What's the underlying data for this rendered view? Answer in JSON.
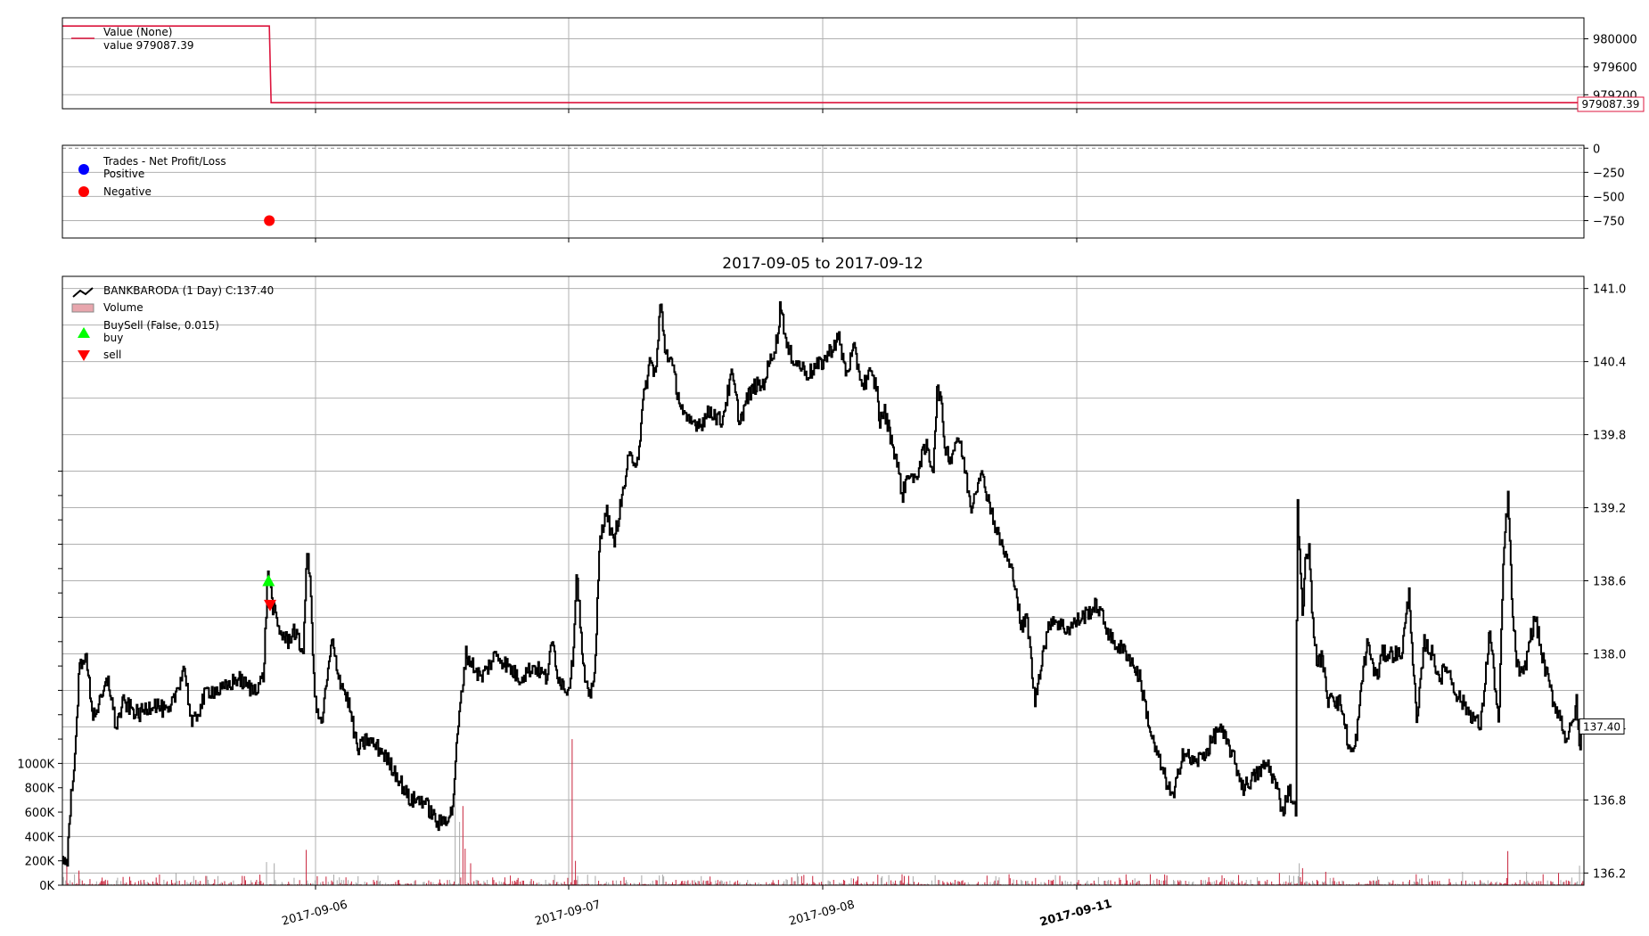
{
  "figure": {
    "main_title": "2017-09-05 to 2017-09-12"
  },
  "x_axis": {
    "ticks": [
      "2017-09-06",
      "2017-09-07",
      "2017-09-08",
      "2017-09-11"
    ]
  },
  "chart_data": [
    {
      "type": "line",
      "panel": "value",
      "legend_location": "top-left",
      "legend": [
        "Value (None)",
        "value 979087.39"
      ],
      "series": [
        {
          "name": "Value (None)",
          "color": "#dc143c",
          "start_value": 980183,
          "end_value": 979087.39,
          "drop_at_fraction": 0.136
        }
      ],
      "current_value_label": "979087.39",
      "y_ticks": [
        980000,
        979600,
        979200
      ],
      "y_tick_labels": [
        "980000",
        "979600",
        "979200"
      ],
      "ylim": [
        979000,
        980300
      ],
      "grid": true
    },
    {
      "type": "scatter",
      "panel": "trades",
      "legend_location": "top-left",
      "legend_title": "Trades - Net Profit/Loss",
      "legend": [
        {
          "name": "Positive",
          "color": "#0000ff"
        },
        {
          "name": "Negative",
          "color": "#ff0000"
        }
      ],
      "points": [
        {
          "x_fraction": 0.136,
          "y": -750,
          "category": "Negative"
        }
      ],
      "y_ticks": [
        0,
        -250,
        -500,
        -750
      ],
      "y_tick_labels": [
        "0",
        "−250",
        "−500",
        "−750"
      ],
      "ylim": [
        -930,
        30
      ],
      "grid": true
    },
    {
      "type": "line",
      "panel": "price",
      "title": "2017-09-05 to 2017-09-12",
      "legend_location": "top-left",
      "legend": [
        {
          "name": "BANKBARODA (1 Day) C:137.40",
          "color": "#000000"
        },
        {
          "name": "Volume",
          "color": "#e8a6ad"
        },
        {
          "name": "BuySell (False, 0.015)",
          "color": null
        },
        {
          "name": "buy",
          "color": "#00ff00"
        },
        {
          "name": "sell",
          "color": "#ff0000"
        }
      ],
      "price_y_ticks": [
        141.0,
        140.4,
        139.8,
        139.2,
        138.6,
        138.0,
        137.4,
        136.8,
        136.2
      ],
      "price_y_tick_labels": [
        "141.0",
        "140.4",
        "139.8",
        "139.2",
        "138.6",
        "138.0",
        "137.4",
        "136.8",
        "136.2"
      ],
      "price_ylim": [
        136.1,
        141.1
      ],
      "volume_y_ticks": [
        0,
        200000,
        400000,
        600000,
        800000,
        1000000
      ],
      "volume_y_tick_labels": [
        "0K",
        "200K",
        "400K",
        "600K",
        "800K",
        "1000K"
      ],
      "volume_ylim": [
        0,
        5000000
      ],
      "current_price_label": "137.40",
      "price_keypoints": [
        [
          0.0,
          136.3
        ],
        [
          0.003,
          136.3
        ],
        [
          0.006,
          136.9
        ],
        [
          0.009,
          137.3
        ],
        [
          0.011,
          137.9
        ],
        [
          0.015,
          138.0
        ],
        [
          0.02,
          137.5
        ],
        [
          0.025,
          137.6
        ],
        [
          0.03,
          137.8
        ],
        [
          0.035,
          137.4
        ],
        [
          0.04,
          137.6
        ],
        [
          0.05,
          137.5
        ],
        [
          0.06,
          137.6
        ],
        [
          0.07,
          137.5
        ],
        [
          0.08,
          137.9
        ],
        [
          0.085,
          137.4
        ],
        [
          0.095,
          137.7
        ],
        [
          0.105,
          137.7
        ],
        [
          0.115,
          137.8
        ],
        [
          0.125,
          137.7
        ],
        [
          0.132,
          137.8
        ],
        [
          0.135,
          138.7
        ],
        [
          0.138,
          138.4
        ],
        [
          0.142,
          138.2
        ],
        [
          0.148,
          138.1
        ],
        [
          0.152,
          138.2
        ],
        [
          0.158,
          138.0
        ],
        [
          0.161,
          138.9
        ],
        [
          0.163,
          138.5
        ],
        [
          0.166,
          137.6
        ],
        [
          0.17,
          137.4
        ],
        [
          0.177,
          138.1
        ],
        [
          0.182,
          137.8
        ],
        [
          0.188,
          137.6
        ],
        [
          0.194,
          137.2
        ],
        [
          0.2,
          137.3
        ],
        [
          0.21,
          137.2
        ],
        [
          0.22,
          137.0
        ],
        [
          0.228,
          136.8
        ],
        [
          0.237,
          136.8
        ],
        [
          0.247,
          136.6
        ],
        [
          0.256,
          136.7
        ],
        [
          0.26,
          137.4
        ],
        [
          0.265,
          138.0
        ],
        [
          0.275,
          137.8
        ],
        [
          0.285,
          138.0
        ],
        [
          0.3,
          137.8
        ],
        [
          0.31,
          137.9
        ],
        [
          0.318,
          137.8
        ],
        [
          0.322,
          138.1
        ],
        [
          0.326,
          137.8
        ],
        [
          0.332,
          137.7
        ],
        [
          0.335,
          137.9
        ],
        [
          0.338,
          138.7
        ],
        [
          0.342,
          137.9
        ],
        [
          0.346,
          137.6
        ],
        [
          0.35,
          137.9
        ],
        [
          0.353,
          138.9
        ],
        [
          0.357,
          139.2
        ],
        [
          0.362,
          138.9
        ],
        [
          0.368,
          139.3
        ],
        [
          0.372,
          139.6
        ],
        [
          0.378,
          139.6
        ],
        [
          0.382,
          140.1
        ],
        [
          0.386,
          140.4
        ],
        [
          0.39,
          140.3
        ],
        [
          0.393,
          140.9
        ],
        [
          0.396,
          140.5
        ],
        [
          0.4,
          140.4
        ],
        [
          0.405,
          140.1
        ],
        [
          0.41,
          139.9
        ],
        [
          0.42,
          139.9
        ],
        [
          0.426,
          140.0
        ],
        [
          0.433,
          139.9
        ],
        [
          0.44,
          140.3
        ],
        [
          0.445,
          139.9
        ],
        [
          0.45,
          140.1
        ],
        [
          0.455,
          140.2
        ],
        [
          0.46,
          140.2
        ],
        [
          0.465,
          140.4
        ],
        [
          0.47,
          140.6
        ],
        [
          0.472,
          140.9
        ],
        [
          0.476,
          140.5
        ],
        [
          0.482,
          140.4
        ],
        [
          0.49,
          140.3
        ],
        [
          0.5,
          140.4
        ],
        [
          0.51,
          140.6
        ],
        [
          0.515,
          140.3
        ],
        [
          0.52,
          140.5
        ],
        [
          0.526,
          140.2
        ],
        [
          0.53,
          140.3
        ],
        [
          0.535,
          140.2
        ],
        [
          0.537,
          139.9
        ],
        [
          0.54,
          140.0
        ],
        [
          0.544,
          139.8
        ],
        [
          0.548,
          139.6
        ],
        [
          0.552,
          139.3
        ],
        [
          0.556,
          139.5
        ],
        [
          0.56,
          139.4
        ],
        [
          0.564,
          139.6
        ],
        [
          0.568,
          139.7
        ],
        [
          0.572,
          139.5
        ],
        [
          0.575,
          140.2
        ],
        [
          0.577,
          140.1
        ],
        [
          0.58,
          139.7
        ],
        [
          0.584,
          139.6
        ],
        [
          0.588,
          139.8
        ],
        [
          0.592,
          139.6
        ],
        [
          0.597,
          139.2
        ],
        [
          0.603,
          139.5
        ],
        [
          0.608,
          139.3
        ],
        [
          0.614,
          139.0
        ],
        [
          0.62,
          138.8
        ],
        [
          0.626,
          138.6
        ],
        [
          0.63,
          138.2
        ],
        [
          0.634,
          138.3
        ],
        [
          0.639,
          137.6
        ],
        [
          0.644,
          138.0
        ],
        [
          0.65,
          138.3
        ],
        [
          0.66,
          138.2
        ],
        [
          0.67,
          138.3
        ],
        [
          0.68,
          138.4
        ],
        [
          0.69,
          138.1
        ],
        [
          0.7,
          138.0
        ],
        [
          0.708,
          137.8
        ],
        [
          0.716,
          137.3
        ],
        [
          0.724,
          137.0
        ],
        [
          0.73,
          136.8
        ],
        [
          0.736,
          137.2
        ],
        [
          0.744,
          137.1
        ],
        [
          0.752,
          137.2
        ],
        [
          0.76,
          137.4
        ],
        [
          0.768,
          137.2
        ],
        [
          0.776,
          136.9
        ],
        [
          0.784,
          137.0
        ],
        [
          0.792,
          137.1
        ],
        [
          0.798,
          136.9
        ],
        [
          0.802,
          136.7
        ],
        [
          0.806,
          136.9
        ],
        [
          0.8105,
          136.7
        ],
        [
          0.8115,
          139.3
        ],
        [
          0.813,
          138.8
        ],
        [
          0.815,
          138.3
        ],
        [
          0.817,
          138.8
        ],
        [
          0.819,
          138.9
        ],
        [
          0.822,
          138.2
        ],
        [
          0.825,
          137.9
        ],
        [
          0.828,
          138.0
        ],
        [
          0.831,
          137.6
        ],
        [
          0.834,
          137.7
        ],
        [
          0.837,
          137.6
        ],
        [
          0.84,
          137.6
        ],
        [
          0.843,
          137.4
        ],
        [
          0.846,
          137.2
        ],
        [
          0.849,
          137.2
        ],
        [
          0.852,
          137.5
        ],
        [
          0.855,
          137.9
        ],
        [
          0.858,
          138.1
        ],
        [
          0.861,
          137.9
        ],
        [
          0.864,
          137.8
        ],
        [
          0.867,
          138.0
        ],
        [
          0.87,
          138.0
        ],
        [
          0.875,
          138.0
        ],
        [
          0.88,
          138.0
        ],
        [
          0.885,
          138.5
        ],
        [
          0.89,
          137.4
        ],
        [
          0.895,
          138.1
        ],
        [
          0.9,
          138.0
        ],
        [
          0.905,
          137.8
        ],
        [
          0.91,
          137.9
        ],
        [
          0.915,
          137.7
        ],
        [
          0.92,
          137.6
        ],
        [
          0.926,
          137.5
        ],
        [
          0.932,
          137.4
        ],
        [
          0.938,
          138.2
        ],
        [
          0.941,
          137.8
        ],
        [
          0.944,
          137.4
        ],
        [
          0.947,
          138.8
        ],
        [
          0.95,
          139.3
        ],
        [
          0.953,
          138.3
        ],
        [
          0.956,
          137.9
        ],
        [
          0.96,
          137.8
        ],
        [
          0.964,
          138.1
        ],
        [
          0.968,
          138.3
        ],
        [
          0.972,
          138.0
        ],
        [
          0.976,
          137.8
        ],
        [
          0.98,
          137.6
        ],
        [
          0.984,
          137.5
        ],
        [
          0.988,
          137.3
        ],
        [
          0.992,
          137.4
        ],
        [
          0.995,
          137.6
        ],
        [
          0.997,
          137.2
        ],
        [
          0.9985,
          137.4
        ],
        [
          1.0,
          137.4
        ]
      ],
      "buy_marker": {
        "x_fraction": 0.1355,
        "y": 138.6
      },
      "sell_marker": {
        "x_fraction": 0.1365,
        "y": 138.4
      },
      "volume_spikes": [
        [
          0.134,
          190000
        ],
        [
          0.16,
          290000
        ],
        [
          0.258,
          780000
        ],
        [
          0.261,
          520000
        ],
        [
          0.263,
          650000
        ],
        [
          0.265,
          300000
        ],
        [
          0.268,
          180000
        ],
        [
          0.335,
          1200000
        ],
        [
          0.337,
          200000
        ],
        [
          0.139,
          180000
        ],
        [
          0.011,
          120000
        ],
        [
          0.003,
          160000
        ],
        [
          0.008,
          90000
        ],
        [
          0.0745,
          100000
        ],
        [
          0.483,
          100000
        ],
        [
          0.552,
          90000
        ],
        [
          0.622,
          90000
        ],
        [
          0.715,
          90000
        ],
        [
          0.726,
          80000
        ],
        [
          0.8,
          100000
        ],
        [
          0.813,
          180000
        ],
        [
          0.815,
          140000
        ],
        [
          0.83,
          110000
        ],
        [
          0.89,
          90000
        ],
        [
          0.92,
          110000
        ],
        [
          0.95,
          280000
        ],
        [
          0.962,
          110000
        ],
        [
          0.973,
          90000
        ],
        [
          0.983,
          100000
        ],
        [
          0.997,
          160000
        ]
      ]
    }
  ]
}
